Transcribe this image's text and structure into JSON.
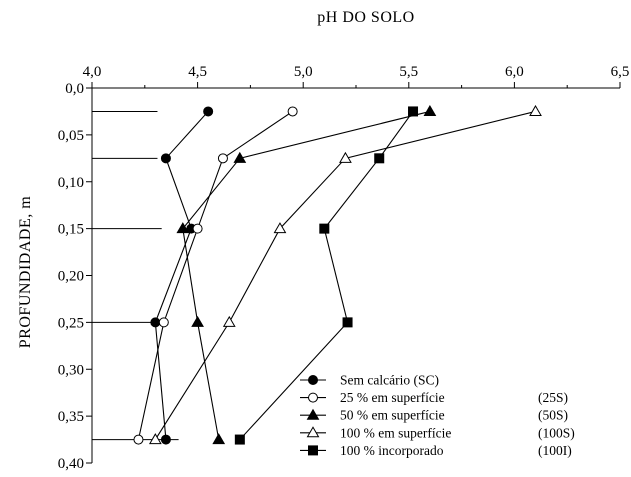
{
  "chart_data": {
    "type": "line",
    "title": "",
    "xlabel": "pH DO SOLO",
    "ylabel": "PROFUNDIDADE, m",
    "xlim": [
      4.0,
      6.5
    ],
    "ylim": [
      0.0,
      0.4
    ],
    "x_axis_position": "top",
    "y_axis_inverted": true,
    "xticks": [
      "4,0",
      "4,5",
      "5,0",
      "5,5",
      "6,0",
      "6,5"
    ],
    "xtick_values": [
      4.0,
      4.5,
      5.0,
      5.5,
      6.0,
      6.5
    ],
    "yticks": [
      "0,0",
      "0,05",
      "0,10",
      "0,15",
      "0,20",
      "0,25",
      "0,30",
      "0,35",
      "0,40"
    ],
    "ytick_values": [
      0.0,
      0.05,
      0.1,
      0.15,
      0.2,
      0.25,
      0.3,
      0.35,
      0.4
    ],
    "grid": false,
    "legend_position": "bottom-right",
    "layer_marks": {
      "depths": [
        0.025,
        0.075,
        0.15,
        0.25,
        0.375
      ],
      "x_end": [
        4.31,
        4.31,
        4.33,
        4.3,
        4.41
      ]
    },
    "series": [
      {
        "name": "Sem calcário (SC)",
        "code": "",
        "marker": "filled-circle",
        "color": "#000000",
        "points": [
          {
            "x": 4.55,
            "y": 0.025
          },
          {
            "x": 4.35,
            "y": 0.075
          },
          {
            "x": 4.47,
            "y": 0.15
          },
          {
            "x": 4.3,
            "y": 0.25
          },
          {
            "x": 4.35,
            "y": 0.375
          }
        ]
      },
      {
        "name": " 25 % em superfície",
        "code": "(25S)",
        "marker": "open-circle",
        "color": "#000000",
        "points": [
          {
            "x": 4.95,
            "y": 0.025
          },
          {
            "x": 4.62,
            "y": 0.075
          },
          {
            "x": 4.5,
            "y": 0.15
          },
          {
            "x": 4.34,
            "y": 0.25
          },
          {
            "x": 4.22,
            "y": 0.375
          }
        ]
      },
      {
        "name": " 50 % em superfície",
        "code": "(50S)",
        "marker": "filled-triangle",
        "color": "#000000",
        "points": [
          {
            "x": 5.6,
            "y": 0.025
          },
          {
            "x": 4.7,
            "y": 0.075
          },
          {
            "x": 4.43,
            "y": 0.15
          },
          {
            "x": 4.5,
            "y": 0.25
          },
          {
            "x": 4.6,
            "y": 0.375
          }
        ]
      },
      {
        "name": "100 % em superfície",
        "code": "(100S)",
        "marker": "open-triangle",
        "color": "#000000",
        "points": [
          {
            "x": 6.1,
            "y": 0.025
          },
          {
            "x": 5.2,
            "y": 0.075
          },
          {
            "x": 4.89,
            "y": 0.15
          },
          {
            "x": 4.65,
            "y": 0.25
          },
          {
            "x": 4.3,
            "y": 0.375
          }
        ]
      },
      {
        "name": "100 %  incorporado",
        "code": "(100I)",
        "marker": "filled-square",
        "color": "#000000",
        "points": [
          {
            "x": 5.52,
            "y": 0.025
          },
          {
            "x": 5.36,
            "y": 0.075
          },
          {
            "x": 5.1,
            "y": 0.15
          },
          {
            "x": 5.21,
            "y": 0.25
          },
          {
            "x": 4.7,
            "y": 0.375
          }
        ]
      }
    ]
  }
}
